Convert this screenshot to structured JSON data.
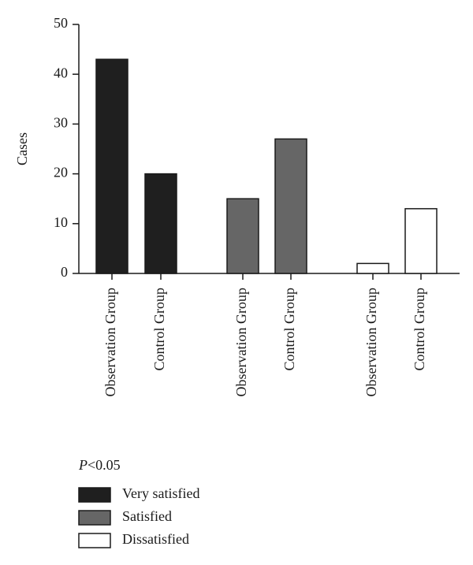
{
  "chart_data": {
    "type": "bar",
    "y_label": "Cases",
    "annotation": "P<0.05",
    "categories": [
      "Observation Group",
      "Control Group",
      "Observation Group",
      "Control Group",
      "Observation Group",
      "Control Group"
    ],
    "series": [
      {
        "name": "Very satisfied",
        "color": "#1f1f1f",
        "values": [
          43,
          20,
          null,
          null,
          null,
          null
        ]
      },
      {
        "name": "Satisfied",
        "color": "#666666",
        "values": [
          null,
          null,
          15,
          27,
          null,
          null
        ]
      },
      {
        "name": "Dissatisfied",
        "color": "#ffffff",
        "values": [
          null,
          null,
          null,
          null,
          2,
          13
        ]
      }
    ],
    "ylim": [
      0,
      50
    ],
    "yticks": [
      0,
      10,
      20,
      30,
      40,
      50
    ]
  }
}
